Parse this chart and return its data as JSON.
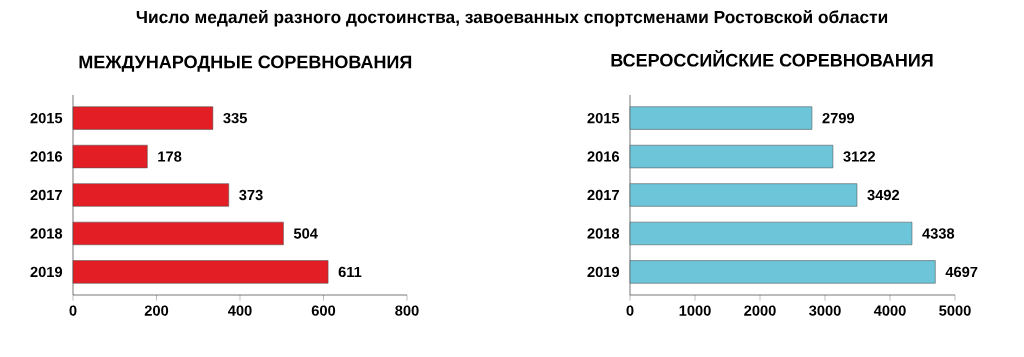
{
  "chart_data": [
    {
      "type": "bar",
      "orientation": "horizontal",
      "title": "Число медалей разного достоинства, завоеванных спортсменами Ростовской области",
      "subtitle": "МЕЖДУНАРОДНЫЕ СОРЕВНОВАНИЯ",
      "categories": [
        "2015",
        "2016",
        "2017",
        "2018",
        "2019"
      ],
      "values": [
        335,
        178,
        373,
        504,
        611
      ],
      "color": "#e31e24",
      "xlim": [
        0,
        800
      ],
      "xticks": [
        0,
        200,
        400,
        600,
        800
      ],
      "data_labels": true
    },
    {
      "type": "bar",
      "orientation": "horizontal",
      "title": "ВСЕРОССИЙСКИЕ СОРЕВНОВАНИЯ",
      "categories": [
        "2015",
        "2016",
        "2017",
        "2018",
        "2019"
      ],
      "values": [
        2799,
        3122,
        3492,
        4338,
        4697
      ],
      "color": "#6cc5d9",
      "xlim": [
        0,
        5000
      ],
      "xticks": [
        0,
        1000,
        2000,
        3000,
        4000,
        5000
      ],
      "data_labels": true
    }
  ]
}
